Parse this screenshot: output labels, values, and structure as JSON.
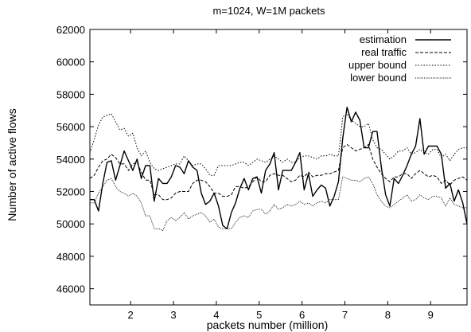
{
  "chart_data": {
    "type": "line",
    "title": "m=1024, W=1M packets",
    "xlabel": "packets number (million)",
    "ylabel": "Number of active flows",
    "xlim": [
      1.05,
      9.85
    ],
    "ylim": [
      45000,
      62000
    ],
    "xticks": [
      2,
      3,
      4,
      5,
      6,
      7,
      8,
      9
    ],
    "yticks": [
      46000,
      48000,
      50000,
      52000,
      54000,
      56000,
      58000,
      60000,
      62000
    ],
    "grid": false,
    "legend_position": "top-right",
    "series": [
      {
        "name": "estimation",
        "style": "solid",
        "x": [
          1.05,
          1.15,
          1.25,
          1.35,
          1.45,
          1.55,
          1.65,
          1.75,
          1.85,
          1.95,
          2.05,
          2.15,
          2.25,
          2.35,
          2.45,
          2.55,
          2.65,
          2.75,
          2.85,
          2.95,
          3.05,
          3.15,
          3.25,
          3.35,
          3.45,
          3.55,
          3.65,
          3.75,
          3.85,
          3.95,
          4.05,
          4.15,
          4.25,
          4.35,
          4.45,
          4.55,
          4.65,
          4.75,
          4.85,
          4.95,
          5.05,
          5.15,
          5.25,
          5.35,
          5.45,
          5.55,
          5.65,
          5.75,
          5.85,
          5.95,
          6.05,
          6.15,
          6.25,
          6.35,
          6.45,
          6.55,
          6.65,
          6.75,
          6.85,
          6.95,
          7.05,
          7.15,
          7.25,
          7.35,
          7.45,
          7.55,
          7.65,
          7.75,
          7.85,
          7.95,
          8.05,
          8.15,
          8.25,
          8.35,
          8.45,
          8.55,
          8.65,
          8.75,
          8.85,
          8.95,
          9.05,
          9.15,
          9.25,
          9.35,
          9.45,
          9.55,
          9.65,
          9.75,
          9.85
        ],
        "y": [
          51500,
          51500,
          50800,
          52500,
          53800,
          53900,
          52700,
          53600,
          54500,
          53900,
          53300,
          54000,
          52800,
          53600,
          53600,
          51400,
          52800,
          52500,
          52500,
          52900,
          53600,
          53500,
          53100,
          53900,
          53500,
          53300,
          51900,
          51200,
          51400,
          51900,
          51100,
          49900,
          49700,
          50700,
          51300,
          52200,
          52800,
          52100,
          52800,
          52900,
          51900,
          53300,
          53700,
          54400,
          52100,
          53300,
          53300,
          53300,
          53800,
          54400,
          52100,
          53100,
          51700,
          52100,
          52400,
          52200,
          51100,
          51700,
          52600,
          55300,
          57200,
          56300,
          56900,
          56400,
          54700,
          54700,
          55700,
          55700,
          53500,
          51800,
          51100,
          52800,
          52500,
          53000,
          53600,
          54300,
          54800,
          56500,
          54300,
          54800,
          54800,
          54800,
          54300,
          52200,
          52500,
          51400,
          52100,
          51300,
          50000
        ],
        "color": "#000000"
      },
      {
        "name": "real traffic",
        "style": "dashed",
        "x": [
          1.05,
          1.15,
          1.25,
          1.35,
          1.45,
          1.55,
          1.65,
          1.75,
          1.85,
          1.95,
          2.05,
          2.15,
          2.25,
          2.35,
          2.45,
          2.55,
          2.65,
          2.75,
          2.85,
          2.95,
          3.05,
          3.15,
          3.25,
          3.35,
          3.45,
          3.55,
          3.65,
          3.75,
          3.85,
          3.95,
          4.05,
          4.15,
          4.25,
          4.35,
          4.45,
          4.55,
          4.65,
          4.75,
          4.85,
          4.95,
          5.05,
          5.15,
          5.25,
          5.35,
          5.45,
          5.55,
          5.65,
          5.75,
          5.85,
          5.95,
          6.05,
          6.15,
          6.25,
          6.35,
          6.45,
          6.55,
          6.65,
          6.75,
          6.85,
          6.95,
          7.05,
          7.15,
          7.25,
          7.35,
          7.45,
          7.55,
          7.65,
          7.75,
          7.85,
          7.95,
          8.05,
          8.15,
          8.25,
          8.35,
          8.45,
          8.55,
          8.65,
          8.75,
          8.85,
          8.95,
          9.05,
          9.15,
          9.25,
          9.35,
          9.45,
          9.55,
          9.65,
          9.75,
          9.85
        ],
        "y": [
          52800,
          53000,
          53500,
          53900,
          54000,
          54300,
          54100,
          53700,
          53700,
          53300,
          53700,
          53800,
          53200,
          52700,
          52700,
          51800,
          51800,
          51500,
          51500,
          51600,
          51900,
          52000,
          52000,
          52000,
          52500,
          52700,
          52700,
          52600,
          52300,
          51900,
          51900,
          51700,
          51700,
          51800,
          52300,
          52300,
          52200,
          52300,
          52600,
          52900,
          52600,
          52600,
          53000,
          53100,
          53000,
          53000,
          52800,
          52600,
          52700,
          53000,
          52900,
          53200,
          52900,
          53000,
          53000,
          53100,
          53100,
          53200,
          53300,
          54700,
          54900,
          54700,
          54500,
          54600,
          54700,
          54900,
          54000,
          53500,
          53100,
          52800,
          52600,
          52900,
          52900,
          53100,
          53100,
          52800,
          53100,
          53300,
          53100,
          52900,
          53000,
          52900,
          52500,
          52700,
          52400,
          52700,
          52800,
          52900,
          52700
        ],
        "color": "#000000"
      },
      {
        "name": "upper bound",
        "style": "dotted",
        "x": [
          1.05,
          1.15,
          1.25,
          1.35,
          1.45,
          1.55,
          1.65,
          1.75,
          1.85,
          1.95,
          2.05,
          2.15,
          2.25,
          2.35,
          2.45,
          2.55,
          2.65,
          2.75,
          2.85,
          2.95,
          3.05,
          3.15,
          3.25,
          3.35,
          3.45,
          3.55,
          3.65,
          3.75,
          3.85,
          3.95,
          4.05,
          4.15,
          4.25,
          4.35,
          4.45,
          4.55,
          4.65,
          4.75,
          4.85,
          4.95,
          5.05,
          5.15,
          5.25,
          5.35,
          5.45,
          5.55,
          5.65,
          5.75,
          5.85,
          5.95,
          6.05,
          6.15,
          6.25,
          6.35,
          6.45,
          6.55,
          6.65,
          6.75,
          6.85,
          6.95,
          7.05,
          7.15,
          7.25,
          7.35,
          7.45,
          7.55,
          7.65,
          7.75,
          7.85,
          7.95,
          8.05,
          8.15,
          8.25,
          8.35,
          8.45,
          8.55,
          8.65,
          8.75,
          8.85,
          8.95,
          9.05,
          9.15,
          9.25,
          9.35,
          9.45,
          9.55,
          9.65,
          9.75,
          9.85
        ],
        "y": [
          54400,
          55200,
          56100,
          56600,
          56700,
          56800,
          56300,
          55800,
          55900,
          55400,
          55600,
          54700,
          54200,
          54500,
          53800,
          53400,
          53300,
          53400,
          53500,
          53600,
          53700,
          53700,
          54200,
          53900,
          53600,
          53700,
          53700,
          53400,
          53000,
          53000,
          53600,
          53600,
          53600,
          53600,
          53700,
          53800,
          53800,
          53600,
          53800,
          54000,
          53900,
          53800,
          54000,
          54200,
          54000,
          53800,
          54000,
          53800,
          53800,
          54100,
          54200,
          54200,
          54100,
          54000,
          54200,
          54200,
          54300,
          54200,
          54200,
          56600,
          56800,
          56400,
          56200,
          56000,
          56000,
          56200,
          55200,
          54700,
          54600,
          54300,
          54000,
          54200,
          54500,
          54500,
          54700,
          54300,
          54400,
          54600,
          54400,
          54300,
          54600,
          54600,
          54100,
          54300,
          53900,
          54300,
          54600,
          54700,
          54700
        ],
        "color": "#000000"
      },
      {
        "name": "lower bound",
        "style": "densely-dotted",
        "x": [
          1.05,
          1.15,
          1.25,
          1.35,
          1.45,
          1.55,
          1.65,
          1.75,
          1.85,
          1.95,
          2.05,
          2.15,
          2.25,
          2.35,
          2.45,
          2.55,
          2.65,
          2.75,
          2.85,
          2.95,
          3.05,
          3.15,
          3.25,
          3.35,
          3.45,
          3.55,
          3.65,
          3.75,
          3.85,
          3.95,
          4.05,
          4.15,
          4.25,
          4.35,
          4.45,
          4.55,
          4.65,
          4.75,
          4.85,
          4.95,
          5.05,
          5.15,
          5.25,
          5.35,
          5.45,
          5.55,
          5.65,
          5.75,
          5.85,
          5.95,
          6.05,
          6.15,
          6.25,
          6.35,
          6.45,
          6.55,
          6.65,
          6.75,
          6.85,
          6.95,
          7.05,
          7.15,
          7.25,
          7.35,
          7.45,
          7.55,
          7.65,
          7.75,
          7.85,
          7.95,
          8.05,
          8.15,
          8.25,
          8.35,
          8.45,
          8.55,
          8.65,
          8.75,
          8.85,
          8.95,
          9.05,
          9.15,
          9.25,
          9.35,
          9.45,
          9.55,
          9.65,
          9.75,
          9.85
        ],
        "y": [
          51300,
          51300,
          51900,
          52300,
          52700,
          52800,
          52300,
          52000,
          51900,
          51700,
          51900,
          51700,
          51300,
          50500,
          50500,
          49700,
          49700,
          49600,
          50200,
          50400,
          50200,
          50400,
          50700,
          50300,
          50500,
          50600,
          50700,
          50500,
          50100,
          50300,
          49800,
          49700,
          49700,
          49700,
          50100,
          50400,
          50500,
          50400,
          50800,
          50900,
          50900,
          50600,
          50800,
          51200,
          50900,
          51000,
          51200,
          51100,
          51200,
          51400,
          51200,
          51300,
          51100,
          51300,
          51400,
          51300,
          51500,
          51500,
          51500,
          52900,
          52800,
          52700,
          52700,
          52600,
          52800,
          52900,
          52500,
          51800,
          51400,
          51100,
          51000,
          51200,
          51400,
          51600,
          51800,
          51400,
          51500,
          51800,
          51600,
          51500,
          51700,
          51700,
          51600,
          51100,
          51600,
          51200,
          51100,
          51000,
          51000
        ],
        "color": "#000000"
      }
    ]
  }
}
